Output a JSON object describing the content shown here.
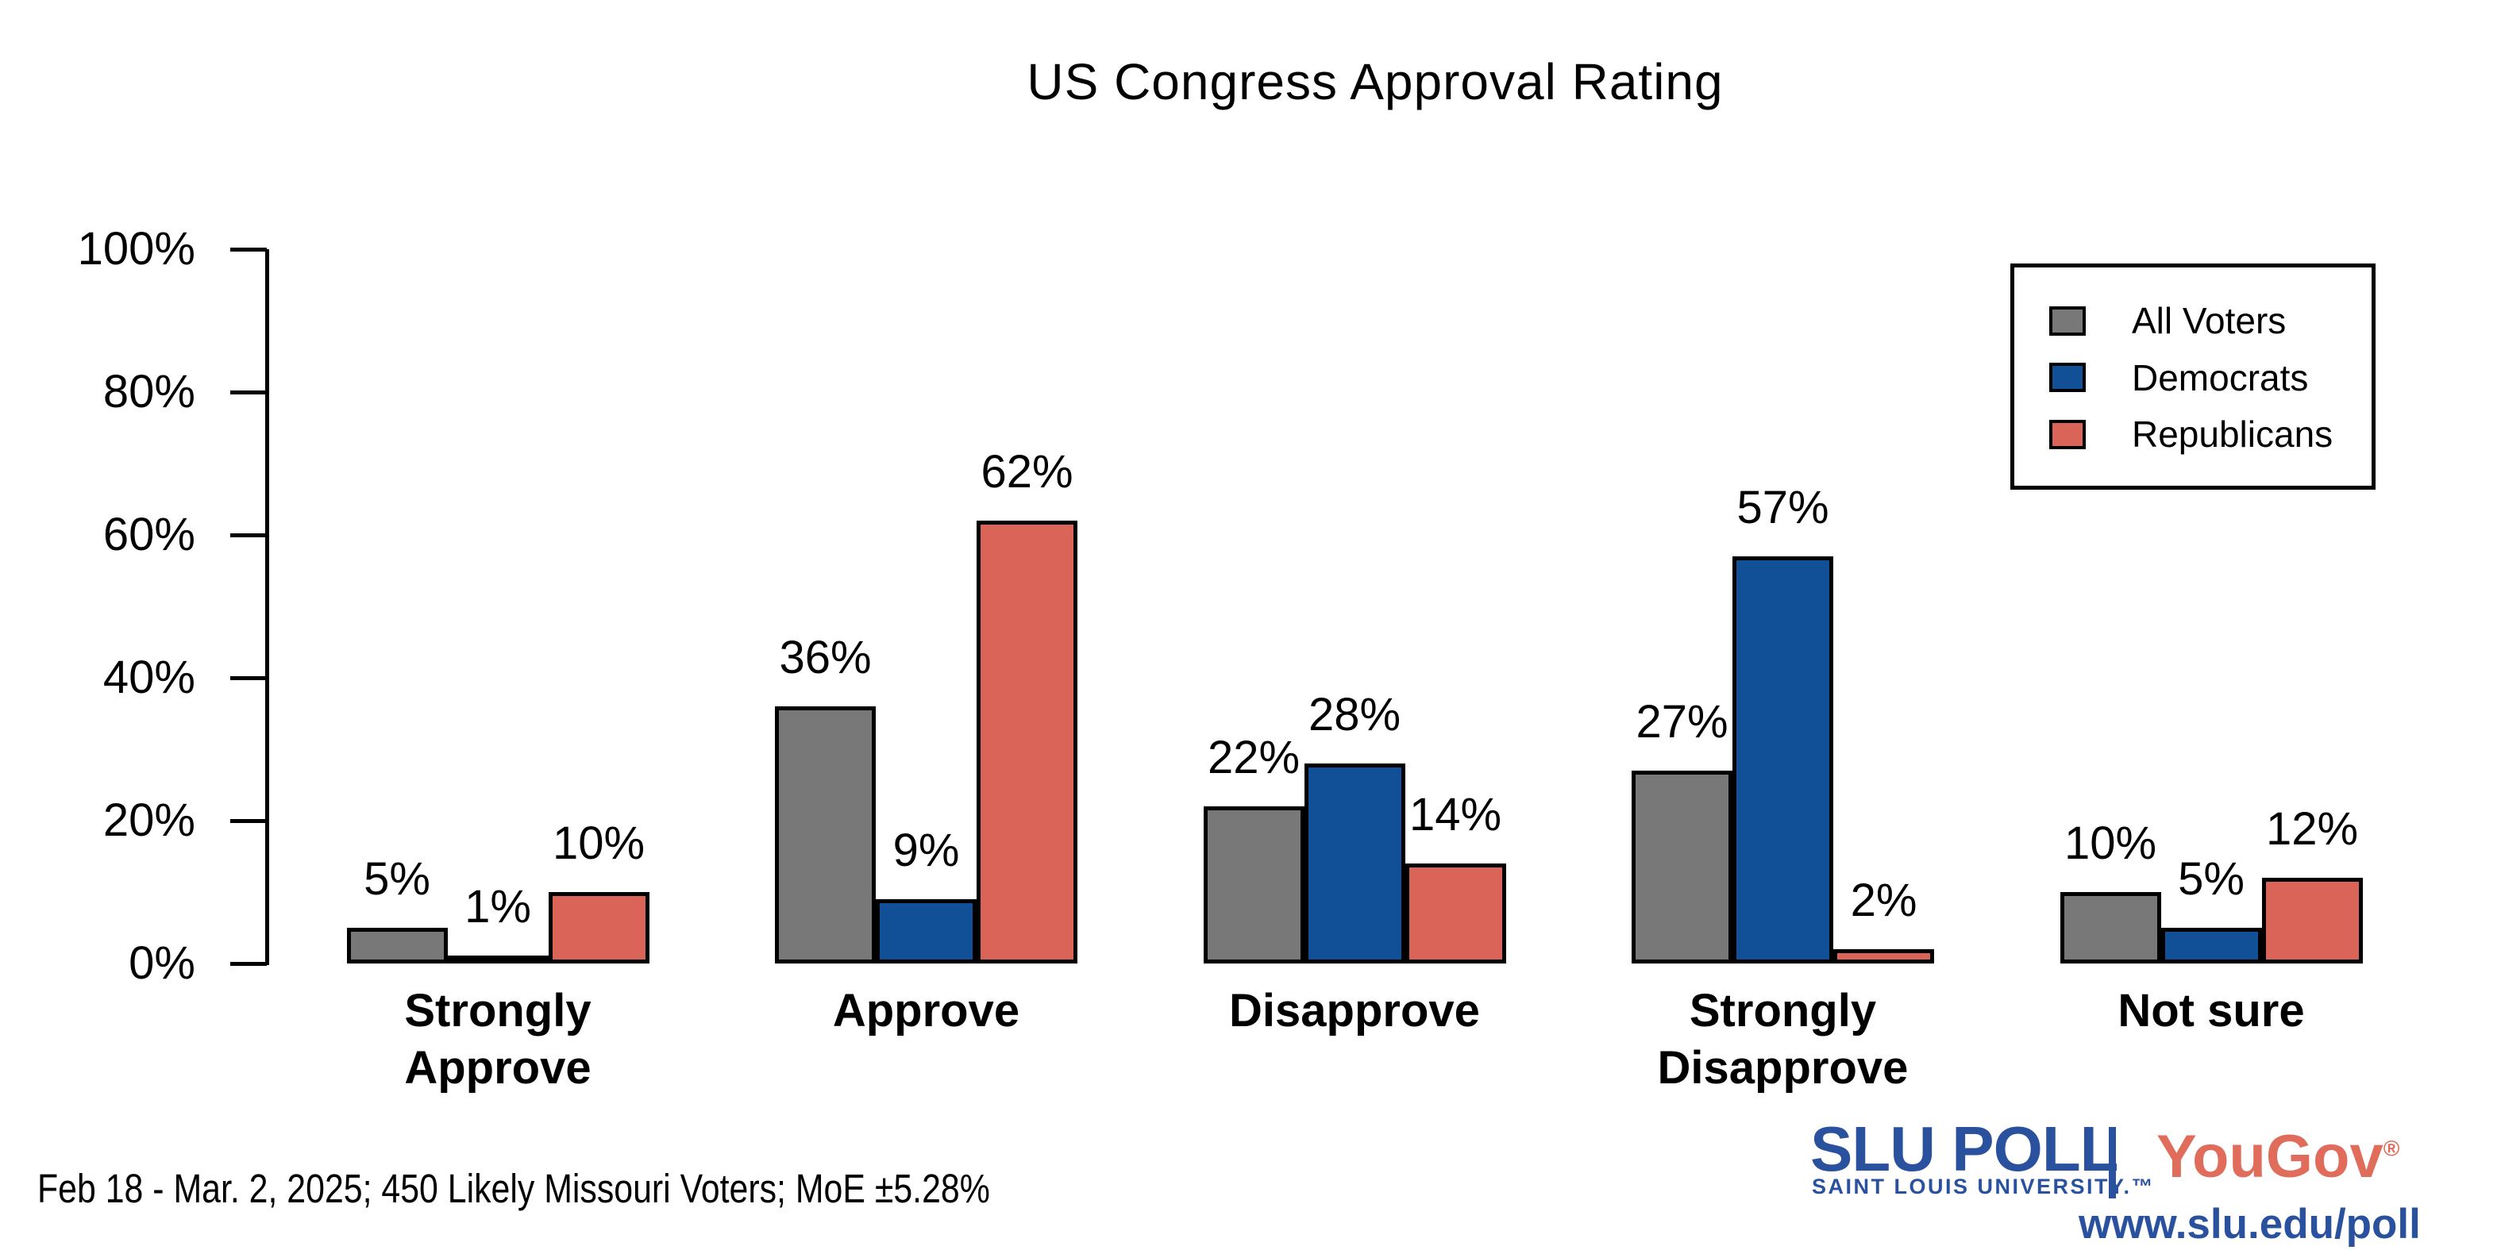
{
  "title": "US Congress Approval Rating",
  "footnote": "Feb 18 - Mar. 2, 2025; 450 Likely Missouri Voters; MoE ±5.28%",
  "legend": {
    "position": "upper right",
    "items": [
      "All Voters",
      "Democrats",
      "Republicans"
    ]
  },
  "branding": {
    "slu_poll": "SLU POLL",
    "slu_subtitle": "SAINT LOUIS UNIVERSITY.™",
    "yougov": "YouGov",
    "yougov_reg": "®",
    "url": "www.slu.edu/poll",
    "slu_blue": "#2a519e",
    "yougov_coral": "#e06c5b"
  },
  "chart_data": {
    "type": "bar",
    "title": "US Congress Approval Rating",
    "categories": [
      "Strongly\nApprove",
      "Approve",
      "Disapprove",
      "Strongly\nDisapprove",
      "Not sure"
    ],
    "series": [
      {
        "name": "All Voters",
        "color": "#787878",
        "values": [
          5,
          36,
          22,
          27,
          10
        ]
      },
      {
        "name": "Democrats",
        "color": "#114f96",
        "values": [
          1,
          9,
          28,
          57,
          5
        ]
      },
      {
        "name": "Republicans",
        "color": "#da6458",
        "values": [
          10,
          62,
          14,
          2,
          12
        ]
      }
    ],
    "value_suffix": "%",
    "ylim": [
      0,
      100
    ],
    "yticks": [
      {
        "value": 0,
        "label": "0%"
      },
      {
        "value": 20,
        "label": "20%"
      },
      {
        "value": 40,
        "label": "40%"
      },
      {
        "value": 60,
        "label": "60%"
      },
      {
        "value": 80,
        "label": "80%"
      },
      {
        "value": 100,
        "label": "100%"
      }
    ],
    "xlabel": "",
    "ylabel": "",
    "grid": false,
    "bar_edge_color": "#000000",
    "legend_position": "upper right"
  }
}
